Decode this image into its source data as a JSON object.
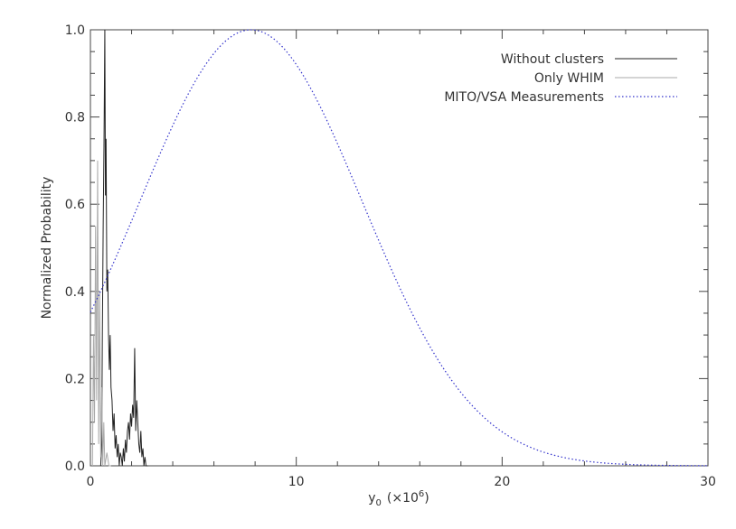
{
  "chart_data": {
    "type": "line",
    "title": "",
    "xlabel": "y",
    "xlabel_sub": "0",
    "xlabel_unit": "(×10",
    "xlabel_exp": "6",
    "xlabel_close": ")",
    "ylabel": "Normalized Probability",
    "xlim": [
      0,
      30
    ],
    "ylim": [
      0,
      1
    ],
    "x_ticks": [
      0,
      10,
      20,
      30
    ],
    "x_tick_labels": [
      "0",
      "10",
      "20",
      "30"
    ],
    "y_ticks": [
      0,
      0.2,
      0.4,
      0.6,
      0.8,
      1.0
    ],
    "y_tick_labels": [
      "0.0",
      "0.2",
      "0.4",
      "0.6",
      "0.8",
      "1.0"
    ],
    "grid": false,
    "legend_position": "top-right",
    "series": [
      {
        "name": "Without clusters",
        "style": "solid",
        "color": "#222222",
        "x": [
          0.5,
          0.55,
          0.58,
          0.62,
          0.66,
          0.7,
          0.73,
          0.76,
          0.8,
          0.84,
          0.88,
          0.92,
          0.96,
          1.0,
          1.05,
          1.1,
          1.15,
          1.2,
          1.25,
          1.3,
          1.35,
          1.4,
          1.45,
          1.5,
          1.55,
          1.6,
          1.65,
          1.7,
          1.75,
          1.8,
          1.85,
          1.9,
          1.95,
          2.0,
          2.05,
          2.1,
          2.15,
          2.2,
          2.25,
          2.3,
          2.35,
          2.4,
          2.45,
          2.5,
          2.55,
          2.6,
          2.65,
          2.7,
          2.8
        ],
        "y": [
          0.0,
          0.05,
          0.3,
          0.55,
          0.74,
          1.0,
          0.62,
          0.75,
          0.4,
          0.45,
          0.3,
          0.22,
          0.3,
          0.18,
          0.15,
          0.08,
          0.12,
          0.04,
          0.07,
          0.02,
          0.05,
          0.0,
          0.03,
          0.02,
          0.0,
          0.04,
          0.01,
          0.06,
          0.03,
          0.08,
          0.1,
          0.06,
          0.12,
          0.09,
          0.14,
          0.11,
          0.27,
          0.08,
          0.15,
          0.1,
          0.05,
          0.03,
          0.08,
          0.02,
          0.04,
          0.0,
          0.02,
          0.0,
          0.0
        ]
      },
      {
        "name": "Only WHIM",
        "style": "solid",
        "color": "#aaaaaa",
        "x": [
          0.1,
          0.15,
          0.2,
          0.25,
          0.3,
          0.35,
          0.4,
          0.45,
          0.5,
          0.55,
          0.6,
          0.65,
          0.7,
          0.8,
          0.9,
          1.0
        ],
        "y": [
          0.0,
          0.3,
          0.1,
          0.55,
          0.15,
          0.7,
          0.05,
          0.4,
          0.02,
          0.18,
          0.0,
          0.1,
          0.0,
          0.03,
          0.0,
          0.0
        ]
      },
      {
        "name": "MITO/VSA Measurements",
        "style": "dotted",
        "color": "#3333cc",
        "mean": 7.8,
        "sigma": 5.4,
        "x_range": [
          0,
          30
        ]
      }
    ]
  }
}
